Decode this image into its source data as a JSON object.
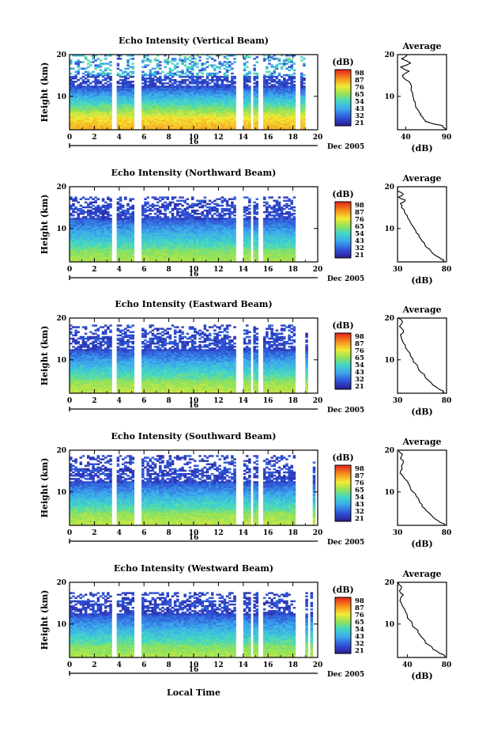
{
  "figure": {
    "date_label": "Dec 2005",
    "day_label": "16",
    "xlabel": "Local Time",
    "ylabel": "Height (km)",
    "average_title": "Average",
    "unit_label": "(dB)"
  },
  "chart_data": [
    {
      "type": "heatmap",
      "title": "Echo Intensity (Vertical Beam)",
      "x_range": [
        0,
        20
      ],
      "x_ticks": [
        0,
        2,
        4,
        6,
        8,
        10,
        12,
        14,
        16,
        18,
        20
      ],
      "y_range": [
        2,
        20
      ],
      "y_ticks": [
        10,
        20
      ],
      "colorbar_ticks": [
        "98",
        "87",
        "76",
        "65",
        "54",
        "43",
        "32",
        "21"
      ],
      "gaps_hours": [
        [
          3.5,
          3.85
        ],
        [
          5.3,
          5.75
        ],
        [
          13.5,
          14.05
        ],
        [
          14.55,
          14.8
        ],
        [
          15.15,
          15.55
        ],
        [
          18.3,
          18.55
        ]
      ],
      "signal_top_km": 20,
      "echo": {
        "top_db": 72,
        "bottom_db": 22,
        "peak_db": 82,
        "peak_km": 3.5
      },
      "average_profile": {
        "xlim": [
          30,
          90
        ],
        "xticks": [
          40,
          90
        ],
        "yticks": [
          10,
          20
        ],
        "height_km": [
          2,
          2.5,
          3,
          3.5,
          4,
          4.5,
          5,
          5.5,
          6,
          7,
          8,
          9,
          10,
          11,
          12,
          13,
          14,
          15,
          16,
          17,
          18,
          19,
          20
        ],
        "db": [
          88,
          87,
          85,
          72,
          64,
          62,
          61,
          58,
          57,
          54,
          52,
          50,
          49,
          48,
          47,
          46,
          40,
          36,
          44,
          34,
          46,
          35,
          42
        ]
      }
    },
    {
      "type": "heatmap",
      "title": "Echo Intensity (Northward Beam)",
      "x_range": [
        0,
        20
      ],
      "x_ticks": [
        0,
        2,
        4,
        6,
        8,
        10,
        12,
        14,
        16,
        18,
        20
      ],
      "y_range": [
        2,
        20
      ],
      "y_ticks": [
        10,
        20
      ],
      "colorbar_ticks": [
        "98",
        "87",
        "76",
        "65",
        "54",
        "43",
        "32",
        "21"
      ],
      "gaps_hours": [
        [
          3.5,
          3.85
        ],
        [
          5.3,
          5.75
        ],
        [
          13.5,
          14.05
        ],
        [
          14.55,
          14.8
        ],
        [
          15.15,
          15.55
        ],
        [
          18.3,
          18.55
        ]
      ],
      "signal_top_km": 17.6,
      "echo": {
        "top_db": 38,
        "bottom_db": 22,
        "peak_db": 68,
        "peak_km": 3.5
      },
      "average_profile": {
        "xlim": [
          30,
          80
        ],
        "xticks": [
          30,
          80
        ],
        "yticks": [
          10,
          20
        ],
        "height_km": [
          2,
          2.5,
          3,
          4,
          5,
          6,
          7,
          8,
          9,
          10,
          11,
          12,
          13,
          14,
          15,
          16,
          16.8,
          17.5,
          18.2,
          19,
          20
        ],
        "db": [
          78,
          77,
          73,
          66,
          63,
          58,
          55,
          52,
          49,
          47,
          44,
          42,
          40,
          37,
          34,
          33,
          38,
          31,
          36,
          30,
          30
        ]
      }
    },
    {
      "type": "heatmap",
      "title": "Echo Intensity (Eastward Beam)",
      "x_range": [
        0,
        20
      ],
      "x_ticks": [
        0,
        2,
        4,
        6,
        8,
        10,
        12,
        14,
        16,
        18,
        20
      ],
      "y_range": [
        2,
        20
      ],
      "y_ticks": [
        10,
        20
      ],
      "colorbar_ticks": [
        "98",
        "87",
        "76",
        "65",
        "54",
        "43",
        "32",
        "21"
      ],
      "gaps_hours": [
        [
          3.5,
          3.85
        ],
        [
          5.3,
          5.75
        ],
        [
          13.5,
          14.05
        ],
        [
          14.55,
          14.8
        ],
        [
          15.15,
          15.55
        ],
        [
          18.3,
          18.55
        ]
      ],
      "signal_top_km": 18.5,
      "echo": {
        "top_db": 38,
        "bottom_db": 22,
        "peak_db": 70,
        "peak_km": 3.5
      },
      "average_profile": {
        "xlim": [
          30,
          80
        ],
        "xticks": [
          30,
          80
        ],
        "yticks": [
          10,
          20
        ],
        "height_km": [
          2,
          2.5,
          3,
          4,
          5,
          6,
          7,
          8,
          9,
          10,
          11,
          12,
          13,
          14,
          15,
          16,
          17,
          18,
          19,
          20
        ],
        "db": [
          78,
          77,
          72,
          66,
          62,
          58,
          54,
          51,
          49,
          46,
          43,
          41,
          38,
          36,
          34,
          33,
          36,
          32,
          35,
          31
        ]
      }
    },
    {
      "type": "heatmap",
      "title": "Echo Intensity (Southward Beam)",
      "x_range": [
        0,
        20
      ],
      "x_ticks": [
        0,
        2,
        4,
        6,
        8,
        10,
        12,
        14,
        16,
        18,
        20
      ],
      "y_range": [
        2,
        20
      ],
      "y_ticks": [
        10,
        20
      ],
      "colorbar_ticks": [
        "98",
        "87",
        "76",
        "65",
        "54",
        "43",
        "32",
        "21"
      ],
      "gaps_hours": [
        [
          3.5,
          3.85
        ],
        [
          5.3,
          5.75
        ],
        [
          13.5,
          14.05
        ],
        [
          14.55,
          14.8
        ],
        [
          15.15,
          15.55
        ],
        [
          18.3,
          18.55
        ]
      ],
      "signal_top_km": 18.8,
      "echo": {
        "top_db": 38,
        "bottom_db": 22,
        "peak_db": 70,
        "peak_km": 3.5
      },
      "average_profile": {
        "xlim": [
          30,
          80
        ],
        "xticks": [
          30,
          80
        ],
        "yticks": [
          10,
          20
        ],
        "height_km": [
          2,
          2.5,
          3,
          4,
          5,
          6,
          7,
          8,
          9,
          10,
          11,
          12,
          13,
          14,
          15,
          16,
          17,
          18,
          19,
          20
        ],
        "db": [
          78,
          76,
          72,
          66,
          62,
          58,
          55,
          52,
          49,
          46,
          43,
          41,
          38,
          35,
          33,
          34,
          36,
          33,
          35,
          31
        ]
      }
    },
    {
      "type": "heatmap",
      "title": "Echo Intensity (Westward Beam)",
      "x_range": [
        0,
        20
      ],
      "x_ticks": [
        0,
        2,
        4,
        6,
        8,
        10,
        12,
        14,
        16,
        18,
        20
      ],
      "y_range": [
        2,
        20
      ],
      "y_ticks": [
        10,
        20
      ],
      "colorbar_ticks": [
        "98",
        "87",
        "76",
        "65",
        "54",
        "43",
        "32",
        "21"
      ],
      "gaps_hours": [
        [
          3.5,
          3.85
        ],
        [
          5.3,
          5.75
        ],
        [
          13.5,
          14.05
        ],
        [
          14.55,
          14.8
        ],
        [
          15.15,
          15.55
        ],
        [
          18.3,
          18.55
        ]
      ],
      "signal_top_km": 17.5,
      "echo": {
        "top_db": 38,
        "bottom_db": 22,
        "peak_db": 68,
        "peak_km": 3.5
      },
      "average_profile": {
        "xlim": [
          30,
          80
        ],
        "xticks": [
          40,
          80
        ],
        "yticks": [
          10,
          20
        ],
        "height_km": [
          2,
          2.5,
          3,
          4,
          5,
          6,
          7,
          8,
          9,
          10,
          11,
          12,
          13,
          14,
          15,
          16,
          17,
          18,
          19,
          20
        ],
        "db": [
          79,
          78,
          73,
          66,
          62,
          58,
          54,
          51,
          48,
          45,
          42,
          40,
          38,
          36,
          34,
          33,
          36,
          32,
          34,
          31
        ]
      }
    }
  ]
}
